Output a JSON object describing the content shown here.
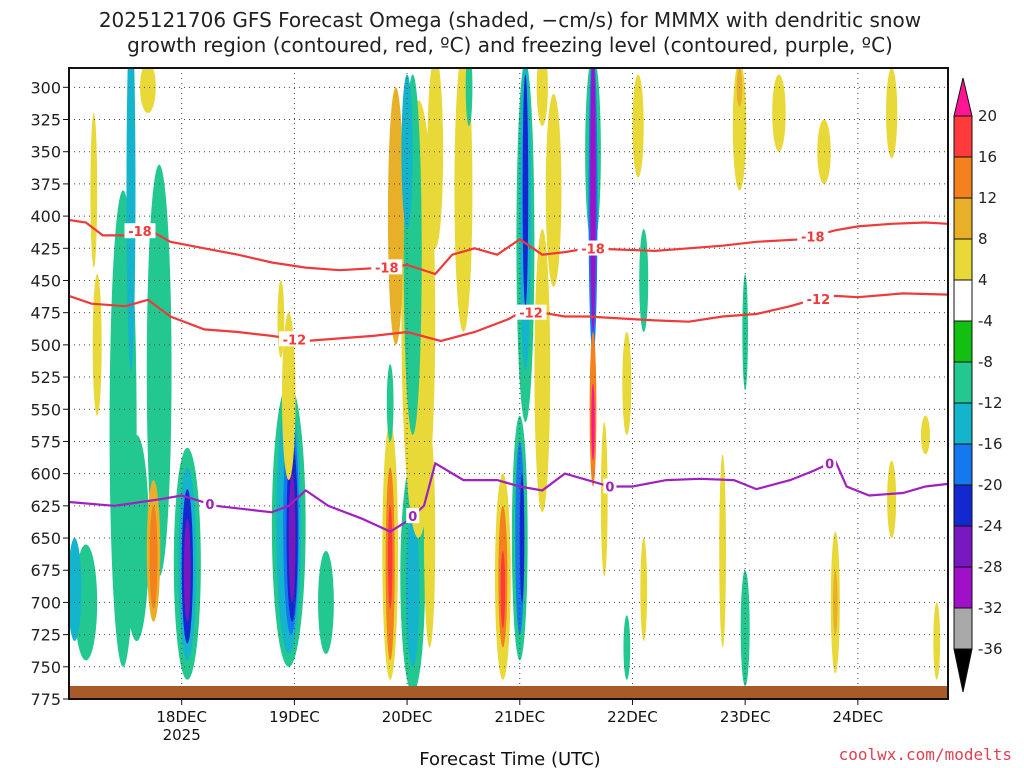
{
  "chart_data": {
    "type": "heatmap",
    "title_line1": "2025121706 GFS Forecast Omega (shaded, −cm/s) for MMMX with dendritic snow",
    "title_line2": "growth region (contoured, red, ºC) and freezing level (contoured, purple, ºC)",
    "xlabel": "Forecast Time (UTC)",
    "credit": "coolwx.com/modelts",
    "yticks": [
      300,
      325,
      350,
      375,
      400,
      425,
      450,
      475,
      500,
      525,
      550,
      575,
      600,
      625,
      650,
      675,
      700,
      725,
      750,
      775
    ],
    "ylim": [
      775,
      285
    ],
    "xlim": [
      -1.0,
      6.8
    ],
    "xticks": [
      {
        "pos": 0,
        "label": "18DEC",
        "sub": "2025"
      },
      {
        "pos": 1,
        "label": "19DEC",
        "sub": ""
      },
      {
        "pos": 2,
        "label": "20DEC",
        "sub": ""
      },
      {
        "pos": 3,
        "label": "21DEC",
        "sub": ""
      },
      {
        "pos": 4,
        "label": "22DEC",
        "sub": ""
      },
      {
        "pos": 5,
        "label": "23DEC",
        "sub": ""
      },
      {
        "pos": 6,
        "label": "24DEC",
        "sub": ""
      }
    ],
    "colorbar": {
      "levels": [
        "20",
        "16",
        "12",
        "8",
        "4",
        "-4",
        "-8",
        "-12",
        "-16",
        "-20",
        "-24",
        "-28",
        "-32",
        "-36"
      ],
      "colors": [
        "#ff1493",
        "#ff3a3a",
        "#f4801e",
        "#e8b028",
        "#e8d838",
        "#ffffff",
        "#12c012",
        "#22c890",
        "#14b4cc",
        "#1478f0",
        "#1428d0",
        "#7818c0",
        "#a010c8",
        "#a8a8a8",
        "#000000"
      ]
    },
    "contours": [
      {
        "name": "dendritic-top",
        "level": -18,
        "color": "#ee3a3a",
        "points": [
          [
            -1.0,
            403
          ],
          [
            -0.85,
            405
          ],
          [
            -0.7,
            415
          ],
          [
            -0.5,
            415
          ],
          [
            -0.3,
            410
          ],
          [
            -0.1,
            420
          ],
          [
            0.2,
            425
          ],
          [
            0.5,
            430
          ],
          [
            0.8,
            436
          ],
          [
            1.1,
            440
          ],
          [
            1.4,
            442
          ],
          [
            1.8,
            440
          ],
          [
            2.0,
            438
          ],
          [
            2.25,
            445
          ],
          [
            2.4,
            430
          ],
          [
            2.6,
            425
          ],
          [
            2.8,
            430
          ],
          [
            3.0,
            418
          ],
          [
            3.2,
            430
          ],
          [
            3.4,
            428
          ],
          [
            3.6,
            425
          ],
          [
            3.9,
            426
          ],
          [
            4.2,
            427
          ],
          [
            4.5,
            425
          ],
          [
            4.8,
            423
          ],
          [
            5.1,
            420
          ],
          [
            5.5,
            418
          ],
          [
            5.8,
            411
          ],
          [
            6.0,
            408
          ],
          [
            6.3,
            406
          ],
          [
            6.6,
            405
          ],
          [
            6.8,
            406
          ]
        ],
        "labels": [
          [
            -0.37,
            "-18"
          ],
          [
            1.82,
            "-18"
          ],
          [
            3.65,
            "-18"
          ],
          [
            5.6,
            "-18"
          ]
        ]
      },
      {
        "name": "dendritic-bottom",
        "level": -12,
        "color": "#ee3a3a",
        "points": [
          [
            -1.0,
            462
          ],
          [
            -0.8,
            468
          ],
          [
            -0.5,
            470
          ],
          [
            -0.3,
            465
          ],
          [
            -0.1,
            478
          ],
          [
            0.2,
            488
          ],
          [
            0.5,
            490
          ],
          [
            0.8,
            493
          ],
          [
            1.1,
            497
          ],
          [
            1.4,
            495
          ],
          [
            1.7,
            493
          ],
          [
            2.0,
            490
          ],
          [
            2.3,
            497
          ],
          [
            2.6,
            490
          ],
          [
            2.9,
            480
          ],
          [
            3.0,
            475
          ],
          [
            3.2,
            475
          ],
          [
            3.4,
            478
          ],
          [
            3.6,
            478
          ],
          [
            4.0,
            480
          ],
          [
            4.2,
            481
          ],
          [
            4.5,
            482
          ],
          [
            4.8,
            478
          ],
          [
            5.1,
            476
          ],
          [
            5.4,
            470
          ],
          [
            5.6,
            465
          ],
          [
            5.8,
            462
          ],
          [
            6.0,
            463
          ],
          [
            6.4,
            460
          ],
          [
            6.8,
            461
          ]
        ],
        "labels": [
          [
            1.0,
            "-12"
          ],
          [
            3.1,
            "-12"
          ],
          [
            5.65,
            "-12"
          ]
        ]
      },
      {
        "name": "freezing-level",
        "level": 0,
        "color": "#a020c0",
        "points": [
          [
            -1.0,
            622
          ],
          [
            -0.6,
            625
          ],
          [
            -0.2,
            620
          ],
          [
            0.0,
            617
          ],
          [
            0.3,
            625
          ],
          [
            0.6,
            628
          ],
          [
            0.8,
            630
          ],
          [
            0.95,
            625
          ],
          [
            1.1,
            613
          ],
          [
            1.3,
            625
          ],
          [
            1.6,
            635
          ],
          [
            1.85,
            645
          ],
          [
            2.0,
            637
          ],
          [
            2.15,
            625
          ],
          [
            2.25,
            592
          ],
          [
            2.5,
            605
          ],
          [
            2.8,
            605
          ],
          [
            3.0,
            610
          ],
          [
            3.2,
            613
          ],
          [
            3.4,
            600
          ],
          [
            3.6,
            605
          ],
          [
            3.8,
            610
          ],
          [
            4.0,
            610
          ],
          [
            4.3,
            605
          ],
          [
            4.6,
            604
          ],
          [
            4.9,
            605
          ],
          [
            5.1,
            612
          ],
          [
            5.4,
            605
          ],
          [
            5.6,
            598
          ],
          [
            5.8,
            590
          ],
          [
            5.9,
            610
          ],
          [
            6.1,
            617
          ],
          [
            6.4,
            615
          ],
          [
            6.6,
            610
          ],
          [
            6.8,
            608
          ]
        ],
        "labels": [
          [
            0.25,
            "0"
          ],
          [
            2.05,
            "0"
          ],
          [
            3.8,
            "0"
          ],
          [
            5.75,
            "0"
          ]
        ]
      }
    ],
    "blobs": [
      {
        "x": -0.52,
        "p": 565,
        "w": 0.24,
        "h": 370,
        "level": -8
      },
      {
        "x": -0.45,
        "p": 380,
        "w": 0.08,
        "h": 280,
        "level": -12
      },
      {
        "x": -0.2,
        "p": 520,
        "w": 0.22,
        "h": 320,
        "level": -8
      },
      {
        "x": -0.85,
        "p": 700,
        "w": 0.2,
        "h": 90,
        "level": -8
      },
      {
        "x": -0.95,
        "p": 690,
        "w": 0.12,
        "h": 80,
        "level": -12
      },
      {
        "x": -0.4,
        "p": 650,
        "w": 0.22,
        "h": 160,
        "level": -8
      },
      {
        "x": -0.25,
        "p": 660,
        "w": 0.12,
        "h": 110,
        "level": 8
      },
      {
        "x": -0.25,
        "p": 665,
        "w": 0.07,
        "h": 80,
        "level": 12
      },
      {
        "x": 0.05,
        "p": 670,
        "w": 0.24,
        "h": 180,
        "level": -8
      },
      {
        "x": 0.05,
        "p": 670,
        "w": 0.16,
        "h": 150,
        "level": -12
      },
      {
        "x": 0.05,
        "p": 672,
        "w": 0.1,
        "h": 120,
        "level": -20
      },
      {
        "x": 0.05,
        "p": 675,
        "w": 0.06,
        "h": 80,
        "level": -24
      },
      {
        "x": -0.75,
        "p": 500,
        "w": 0.08,
        "h": 110,
        "level": 4
      },
      {
        "x": -0.78,
        "p": 380,
        "w": 0.06,
        "h": 120,
        "level": 4
      },
      {
        "x": -0.3,
        "p": 300,
        "w": 0.14,
        "h": 40,
        "level": 4
      },
      {
        "x": 0.95,
        "p": 640,
        "w": 0.3,
        "h": 220,
        "level": -8
      },
      {
        "x": 0.95,
        "p": 640,
        "w": 0.22,
        "h": 200,
        "level": -12
      },
      {
        "x": 0.97,
        "p": 640,
        "w": 0.14,
        "h": 170,
        "level": -16
      },
      {
        "x": 0.98,
        "p": 645,
        "w": 0.1,
        "h": 140,
        "level": -20
      },
      {
        "x": 0.98,
        "p": 650,
        "w": 0.06,
        "h": 100,
        "level": -24
      },
      {
        "x": 0.95,
        "p": 540,
        "w": 0.12,
        "h": 130,
        "level": 4
      },
      {
        "x": 0.88,
        "p": 480,
        "w": 0.06,
        "h": 60,
        "level": 4
      },
      {
        "x": 1.28,
        "p": 700,
        "w": 0.14,
        "h": 80,
        "level": -8
      },
      {
        "x": 1.85,
        "p": 660,
        "w": 0.14,
        "h": 200,
        "level": 4
      },
      {
        "x": 1.85,
        "p": 670,
        "w": 0.08,
        "h": 150,
        "level": 12
      },
      {
        "x": 1.85,
        "p": 665,
        "w": 0.04,
        "h": 80,
        "level": 16
      },
      {
        "x": 2.05,
        "p": 680,
        "w": 0.22,
        "h": 180,
        "level": -8
      },
      {
        "x": 2.05,
        "p": 690,
        "w": 0.12,
        "h": 120,
        "level": -12
      },
      {
        "x": 2.2,
        "p": 650,
        "w": 0.1,
        "h": 170,
        "level": 4
      },
      {
        "x": 2.1,
        "p": 480,
        "w": 0.3,
        "h": 340,
        "level": 4
      },
      {
        "x": 2.05,
        "p": 430,
        "w": 0.16,
        "h": 280,
        "level": -8
      },
      {
        "x": 1.9,
        "p": 400,
        "w": 0.14,
        "h": 200,
        "level": 8
      },
      {
        "x": 2.0,
        "p": 350,
        "w": 0.1,
        "h": 120,
        "level": -12
      },
      {
        "x": 2.25,
        "p": 350,
        "w": 0.14,
        "h": 150,
        "level": 4
      },
      {
        "x": 2.5,
        "p": 380,
        "w": 0.16,
        "h": 220,
        "level": 4
      },
      {
        "x": 2.55,
        "p": 300,
        "w": 0.06,
        "h": 60,
        "level": -8
      },
      {
        "x": 1.85,
        "p": 545,
        "w": 0.06,
        "h": 60,
        "level": -8
      },
      {
        "x": 2.85,
        "p": 680,
        "w": 0.14,
        "h": 160,
        "level": 4
      },
      {
        "x": 2.85,
        "p": 680,
        "w": 0.08,
        "h": 110,
        "level": 12
      },
      {
        "x": 2.85,
        "p": 690,
        "w": 0.04,
        "h": 60,
        "level": 16
      },
      {
        "x": 3.0,
        "p": 650,
        "w": 0.14,
        "h": 190,
        "level": -8
      },
      {
        "x": 3.0,
        "p": 650,
        "w": 0.08,
        "h": 150,
        "level": -16
      },
      {
        "x": 3.02,
        "p": 650,
        "w": 0.04,
        "h": 100,
        "level": -20
      },
      {
        "x": 3.05,
        "p": 420,
        "w": 0.16,
        "h": 280,
        "level": -8
      },
      {
        "x": 3.05,
        "p": 400,
        "w": 0.1,
        "h": 240,
        "level": -12
      },
      {
        "x": 3.05,
        "p": 380,
        "w": 0.05,
        "h": 180,
        "level": -20
      },
      {
        "x": 3.2,
        "p": 520,
        "w": 0.14,
        "h": 220,
        "level": 4
      },
      {
        "x": 3.3,
        "p": 380,
        "w": 0.14,
        "h": 150,
        "level": 4
      },
      {
        "x": 3.2,
        "p": 300,
        "w": 0.1,
        "h": 60,
        "level": 4
      },
      {
        "x": 3.65,
        "p": 350,
        "w": 0.14,
        "h": 150,
        "level": -8
      },
      {
        "x": 3.65,
        "p": 390,
        "w": 0.08,
        "h": 240,
        "level": -16
      },
      {
        "x": 3.65,
        "p": 380,
        "w": 0.05,
        "h": 220,
        "level": -28
      },
      {
        "x": 3.65,
        "p": 550,
        "w": 0.06,
        "h": 120,
        "level": 12
      },
      {
        "x": 3.65,
        "p": 560,
        "w": 0.03,
        "h": 60,
        "level": 20
      },
      {
        "x": 3.75,
        "p": 620,
        "w": 0.06,
        "h": 120,
        "level": 4
      },
      {
        "x": 3.95,
        "p": 735,
        "w": 0.06,
        "h": 50,
        "level": -8
      },
      {
        "x": 4.1,
        "p": 450,
        "w": 0.08,
        "h": 80,
        "level": -8
      },
      {
        "x": 4.05,
        "p": 330,
        "w": 0.1,
        "h": 80,
        "level": 4
      },
      {
        "x": 3.95,
        "p": 530,
        "w": 0.08,
        "h": 80,
        "level": 4
      },
      {
        "x": 4.1,
        "p": 690,
        "w": 0.06,
        "h": 80,
        "level": 4
      },
      {
        "x": 5.0,
        "p": 490,
        "w": 0.05,
        "h": 90,
        "level": -8
      },
      {
        "x": 5.0,
        "p": 720,
        "w": 0.08,
        "h": 90,
        "level": -8
      },
      {
        "x": 4.8,
        "p": 660,
        "w": 0.06,
        "h": 150,
        "level": 4
      },
      {
        "x": 4.95,
        "p": 330,
        "w": 0.12,
        "h": 100,
        "level": 4
      },
      {
        "x": 4.95,
        "p": 300,
        "w": 0.05,
        "h": 30,
        "level": 8
      },
      {
        "x": 5.3,
        "p": 320,
        "w": 0.12,
        "h": 60,
        "level": 4
      },
      {
        "x": 5.7,
        "p": 350,
        "w": 0.12,
        "h": 50,
        "level": 4
      },
      {
        "x": 5.8,
        "p": 700,
        "w": 0.08,
        "h": 110,
        "level": 4
      },
      {
        "x": 5.8,
        "p": 700,
        "w": 0.04,
        "h": 50,
        "level": 8
      },
      {
        "x": 6.3,
        "p": 320,
        "w": 0.1,
        "h": 70,
        "level": 4
      },
      {
        "x": 6.3,
        "p": 620,
        "w": 0.08,
        "h": 60,
        "level": 4
      },
      {
        "x": 6.6,
        "p": 570,
        "w": 0.08,
        "h": 30,
        "level": 4
      },
      {
        "x": 6.7,
        "p": 730,
        "w": 0.06,
        "h": 60,
        "level": 4
      }
    ]
  }
}
